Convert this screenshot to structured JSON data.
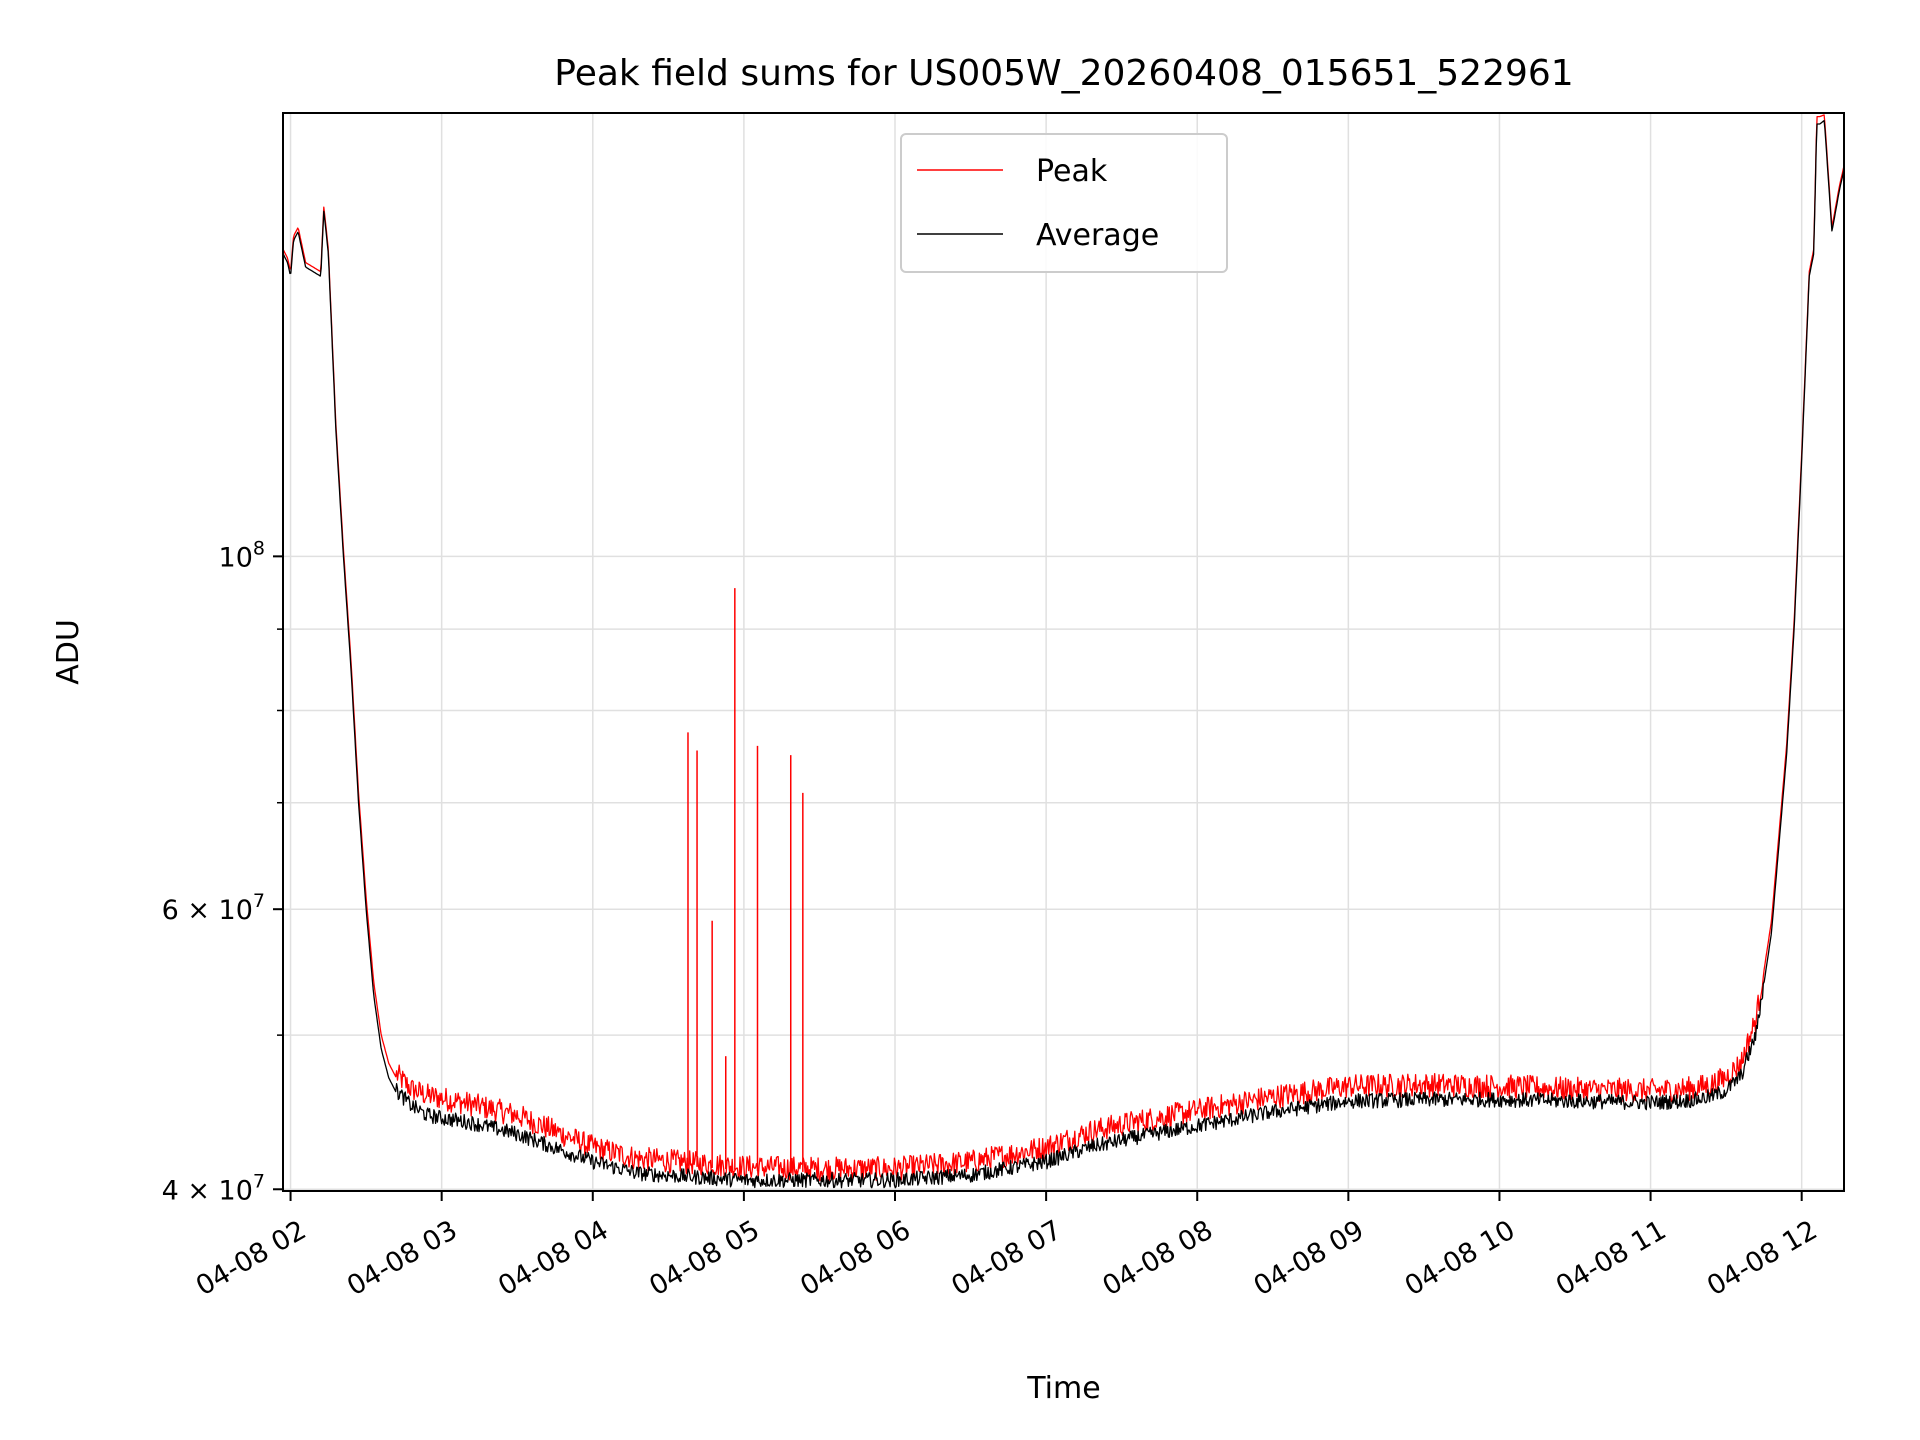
{
  "chart_data": {
    "type": "line",
    "title": "Peak field sums for US005W_20260408_015651_522961",
    "xlabel": "Time",
    "ylabel": "ADU",
    "yscale": "log",
    "grid": true,
    "legend_position": "top-center",
    "xlim": [
      1.95,
      12.28
    ],
    "ylim": [
      39900000,
      190000000
    ],
    "x_ticks": [
      {
        "value": 2,
        "label": "04-08 02"
      },
      {
        "value": 3,
        "label": "04-08 03"
      },
      {
        "value": 4,
        "label": "04-08 04"
      },
      {
        "value": 5,
        "label": "04-08 05"
      },
      {
        "value": 6,
        "label": "04-08 06"
      },
      {
        "value": 7,
        "label": "04-08 07"
      },
      {
        "value": 8,
        "label": "04-08 08"
      },
      {
        "value": 9,
        "label": "04-08 09"
      },
      {
        "value": 10,
        "label": "04-08 10"
      },
      {
        "value": 11,
        "label": "04-08 11"
      },
      {
        "value": 12,
        "label": "04-08 12"
      }
    ],
    "y_major_ticks": [
      {
        "value": 40000000,
        "base": "4 × 10",
        "exp": "7"
      },
      {
        "value": 60000000,
        "base": "6 × 10",
        "exp": "7"
      },
      {
        "value": 100000000,
        "base": "10",
        "exp": "8"
      }
    ],
    "y_minor_ticks": [
      50000000,
      70000000,
      80000000,
      90000000
    ],
    "series": [
      {
        "name": "Average",
        "color": "#000000",
        "x": [
          1.95,
          1.98,
          2.0,
          2.02,
          2.05,
          2.1,
          2.15,
          2.2,
          2.22,
          2.25,
          2.27,
          2.3,
          2.35,
          2.4,
          2.45,
          2.5,
          2.55,
          2.6,
          2.65,
          2.7,
          2.75,
          2.8,
          2.9,
          3.0,
          3.2,
          3.5,
          4.0,
          4.3,
          5.0,
          5.5,
          6.0,
          6.5,
          7.0,
          7.3,
          7.6,
          8.0,
          8.5,
          9.0,
          9.5,
          10.0,
          10.5,
          11.0,
          11.2,
          11.3,
          11.4,
          11.5,
          11.6,
          11.7,
          11.8,
          11.9,
          11.95,
          12.0,
          12.05,
          12.08,
          12.1,
          12.12,
          12.15,
          12.2,
          12.25,
          12.28
        ],
        "y": [
          155000000,
          153000000,
          150000000,
          158000000,
          160000000,
          152000000,
          151000000,
          150000000,
          165000000,
          155000000,
          140000000,
          120000000,
          100000000,
          85000000,
          70000000,
          60000000,
          53000000,
          49000000,
          47000000,
          46000000,
          45500000,
          45000000,
          44400000,
          44200000,
          43900000,
          43200000,
          41500000,
          40800000,
          40400000,
          40400000,
          40400000,
          40700000,
          41500000,
          42400000,
          43000000,
          43700000,
          44600000,
          45300000,
          45400000,
          45400000,
          45300000,
          45200000,
          45300000,
          45400000,
          45600000,
          46000000,
          47000000,
          50000000,
          58000000,
          75000000,
          90000000,
          115000000,
          150000000,
          155000000,
          187000000,
          187000000,
          188000000,
          160000000,
          170000000,
          175000000
        ]
      },
      {
        "name": "Peak",
        "color": "#ff0000",
        "x": [
          1.95,
          1.98,
          2.0,
          2.02,
          2.05,
          2.1,
          2.15,
          2.2,
          2.22,
          2.25,
          2.27,
          2.3,
          2.35,
          2.4,
          2.45,
          2.5,
          2.55,
          2.6,
          2.65,
          2.7,
          2.75,
          2.8,
          2.9,
          3.0,
          3.2,
          3.5,
          4.0,
          4.3,
          5.0,
          5.5,
          6.0,
          6.5,
          7.0,
          7.3,
          7.6,
          8.0,
          8.5,
          9.0,
          9.5,
          10.0,
          10.5,
          11.0,
          11.2,
          11.3,
          11.4,
          11.5,
          11.6,
          11.7,
          11.8,
          11.9,
          11.95,
          12.0,
          12.05,
          12.08,
          12.1,
          12.12,
          12.15,
          12.2,
          12.25,
          12.28
        ],
        "y": [
          156000000,
          154000000,
          151000000,
          159000000,
          161000000,
          153000000,
          152000000,
          151000000,
          166000000,
          156000000,
          141000000,
          121000000,
          101000000,
          86000000,
          71000000,
          61000000,
          54000000,
          50000000,
          48000000,
          47000000,
          46500000,
          46000000,
          45600000,
          45400000,
          45000000,
          44300000,
          42300000,
          41600000,
          41100000,
          41000000,
          41000000,
          41400000,
          42300000,
          43300000,
          43900000,
          44600000,
          45500000,
          46200000,
          46300000,
          46200000,
          46000000,
          45900000,
          46000000,
          46100000,
          46300000,
          46800000,
          47800000,
          51000000,
          59000000,
          76000000,
          91000000,
          116000000,
          151000000,
          156000000,
          189000000,
          189000000,
          189500000,
          161000000,
          171000000,
          176000000
        ]
      }
    ],
    "peak_spikes": [
      {
        "x": 4.55,
        "y": 42000000
      },
      {
        "x": 4.63,
        "y": 77500000
      },
      {
        "x": 4.69,
        "y": 75500000
      },
      {
        "x": 4.79,
        "y": 59000000
      },
      {
        "x": 4.88,
        "y": 48500000
      },
      {
        "x": 4.94,
        "y": 95500000
      },
      {
        "x": 5.09,
        "y": 76000000
      },
      {
        "x": 5.31,
        "y": 75000000
      },
      {
        "x": 5.39,
        "y": 71000000
      }
    ]
  }
}
